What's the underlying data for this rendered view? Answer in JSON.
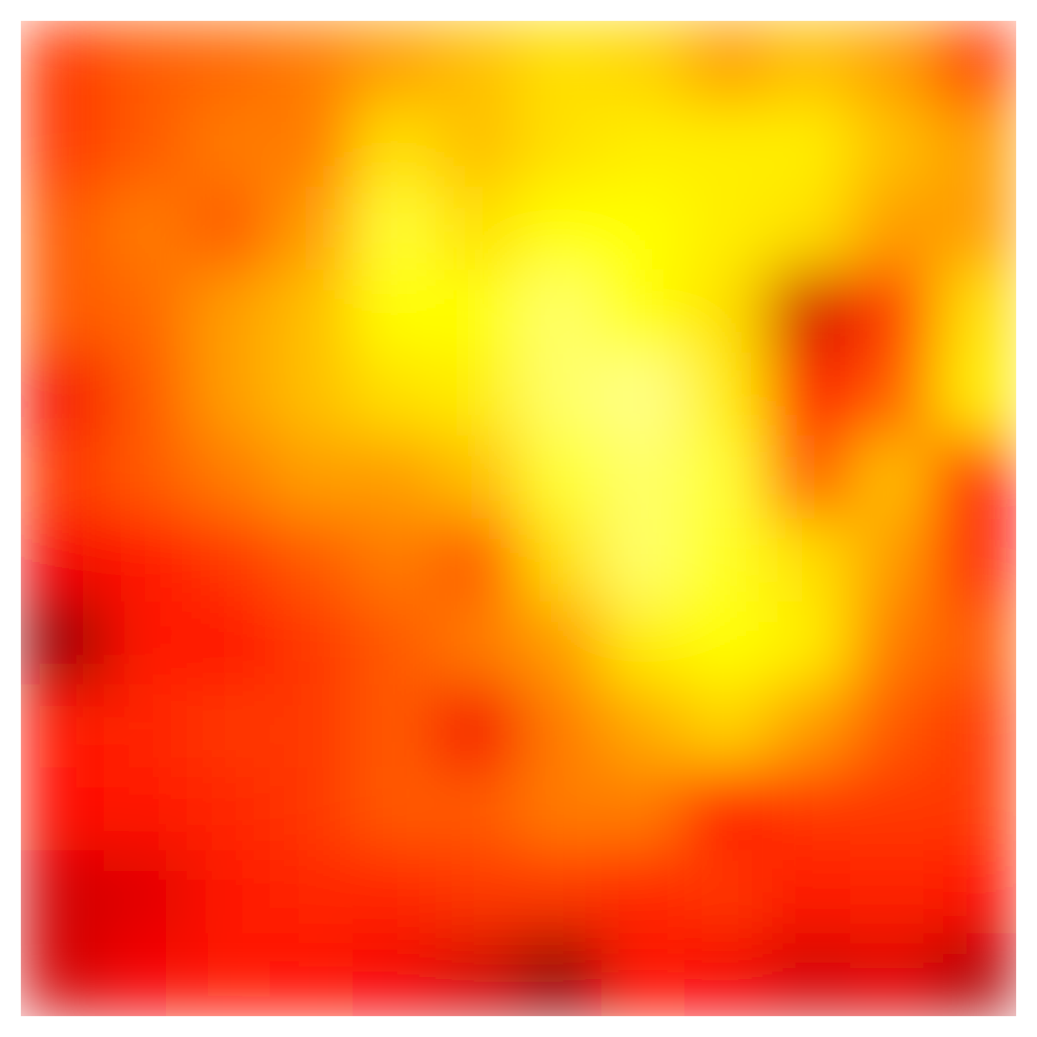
{
  "chart_data": {
    "type": "heatmap",
    "colormap": "hot",
    "zlim": [
      0,
      1
    ],
    "z": [
      [
        0.45,
        0.5,
        0.52,
        0.55,
        0.6,
        0.65,
        0.7,
        0.68,
        0.6,
        0.65,
        0.6,
        0.45
      ],
      [
        0.45,
        0.5,
        0.55,
        0.55,
        0.7,
        0.65,
        0.7,
        0.72,
        0.72,
        0.72,
        0.65,
        0.6
      ],
      [
        0.5,
        0.55,
        0.5,
        0.6,
        0.8,
        0.7,
        0.75,
        0.75,
        0.72,
        0.7,
        0.6,
        0.6
      ],
      [
        0.5,
        0.52,
        0.6,
        0.65,
        0.75,
        0.75,
        0.85,
        0.75,
        0.7,
        0.3,
        0.45,
        0.7
      ],
      [
        0.35,
        0.5,
        0.6,
        0.65,
        0.7,
        0.72,
        0.85,
        0.88,
        0.72,
        0.4,
        0.5,
        0.72
      ],
      [
        0.45,
        0.5,
        0.55,
        0.6,
        0.6,
        0.65,
        0.8,
        0.85,
        0.8,
        0.5,
        0.65,
        0.4
      ],
      [
        0.35,
        0.4,
        0.45,
        0.5,
        0.55,
        0.5,
        0.7,
        0.85,
        0.78,
        0.7,
        0.6,
        0.4
      ],
      [
        0.2,
        0.4,
        0.4,
        0.45,
        0.5,
        0.55,
        0.6,
        0.72,
        0.75,
        0.72,
        0.55,
        0.5
      ],
      [
        0.4,
        0.42,
        0.45,
        0.45,
        0.5,
        0.35,
        0.55,
        0.62,
        0.68,
        0.6,
        0.5,
        0.45
      ],
      [
        0.38,
        0.4,
        0.42,
        0.45,
        0.5,
        0.5,
        0.55,
        0.55,
        0.4,
        0.45,
        0.45,
        0.45
      ],
      [
        0.3,
        0.32,
        0.4,
        0.42,
        0.42,
        0.45,
        0.45,
        0.42,
        0.45,
        0.4,
        0.42,
        0.38
      ],
      [
        0.3,
        0.35,
        0.4,
        0.38,
        0.35,
        0.3,
        0.2,
        0.38,
        0.35,
        0.3,
        0.32,
        0.25
      ]
    ]
  }
}
